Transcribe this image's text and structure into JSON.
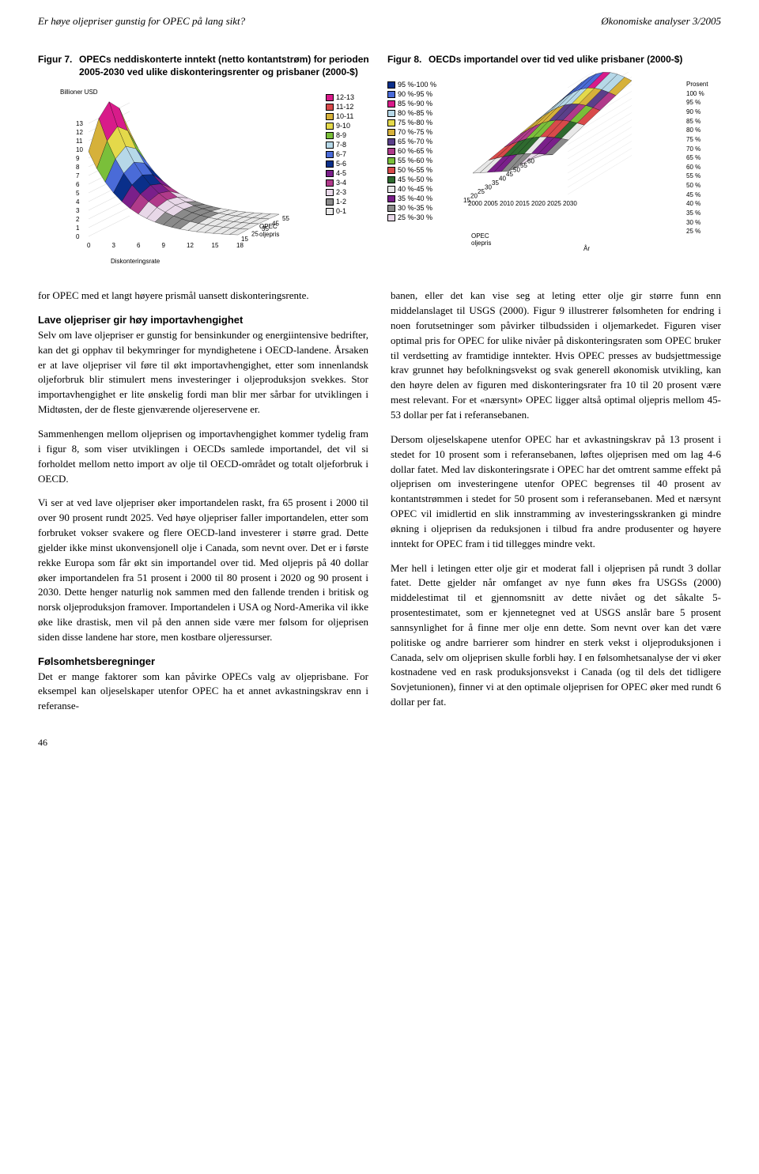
{
  "header": {
    "left": "Er høye oljepriser gunstig for OPEC på lang sikt?",
    "right": "Økonomiske analyser 3/2005"
  },
  "figure7": {
    "label": "Figur 7.",
    "title": "OPECs neddiskonterte inntekt (netto kontantstrøm) for perioden 2005-2030 ved ulike diskonteringsrenter og prisbaner (2000-$)",
    "z_unit": "Billioner USD",
    "z_ticks": [
      0,
      1,
      2,
      3,
      4,
      5,
      6,
      7,
      8,
      9,
      10,
      11,
      12,
      13
    ],
    "x_label": "Diskonteringsrate",
    "x_ticks": [
      0,
      3,
      6,
      9,
      12,
      15,
      18
    ],
    "y_label": "OPEC oljepris",
    "y_ticks": [
      15,
      25,
      35,
      45,
      55
    ],
    "legend": [
      {
        "label": "12-13",
        "color": "#d81b8a"
      },
      {
        "label": "11-12",
        "color": "#d84a4a"
      },
      {
        "label": "10-11",
        "color": "#d6b13a"
      },
      {
        "label": "9-10",
        "color": "#e4d94a"
      },
      {
        "label": "8-9",
        "color": "#7abf3a"
      },
      {
        "label": "7-8",
        "color": "#b6d8e8"
      },
      {
        "label": "6-7",
        "color": "#4a6bd8"
      },
      {
        "label": "5-6",
        "color": "#0a2f8a"
      },
      {
        "label": "4-5",
        "color": "#7a1f8a"
      },
      {
        "label": "3-4",
        "color": "#b03a8a"
      },
      {
        "label": "2-3",
        "color": "#e8d8e8"
      },
      {
        "label": "1-2",
        "color": "#8a8a8a"
      },
      {
        "label": "0-1",
        "color": "#e8e8e8"
      }
    ],
    "surface_grid_color": "#000000",
    "background": "#ffffff"
  },
  "figure8": {
    "label": "Figur 8.",
    "title": "OECDs importandel over tid ved ulike prisbaner (2000-$)",
    "legend": [
      {
        "label": "95 %-100 %",
        "color": "#0a2f8a"
      },
      {
        "label": "90 %-95 %",
        "color": "#4a6bd8"
      },
      {
        "label": "85 %-90 %",
        "color": "#d81b8a"
      },
      {
        "label": "80 %-85 %",
        "color": "#b6d8e8"
      },
      {
        "label": "75 %-80 %",
        "color": "#e4d94a"
      },
      {
        "label": "70 %-75 %",
        "color": "#d6b13a"
      },
      {
        "label": "65 %-70 %",
        "color": "#5a3f8a"
      },
      {
        "label": "60 %-65 %",
        "color": "#b03a8a"
      },
      {
        "label": "55 %-60 %",
        "color": "#7abf3a"
      },
      {
        "label": "50 %-55 %",
        "color": "#d84a4a"
      },
      {
        "label": "45 %-50 %",
        "color": "#2f6a2f"
      },
      {
        "label": "40 %-45 %",
        "color": "#e8e8e8"
      },
      {
        "label": "35 %-40 %",
        "color": "#7a1f8a"
      },
      {
        "label": "30 %-35 %",
        "color": "#8a8a8a"
      },
      {
        "label": "25 %-30 %",
        "color": "#e8d8e8"
      }
    ],
    "y_label": "OPEC oljepris",
    "y_ticks": [
      15,
      20,
      25,
      30,
      35,
      40,
      45,
      50,
      55,
      60
    ],
    "x_label": "År",
    "x_ticks": [
      2000,
      2005,
      2010,
      2015,
      2020,
      2025,
      2030
    ],
    "z_header": "Prosent",
    "z_ticks": [
      "100 %",
      "95 %",
      "90 %",
      "85 %",
      "80 %",
      "75 %",
      "70 %",
      "65 %",
      "60 %",
      "55 %",
      "50 %",
      "45 %",
      "40 %",
      "35 %",
      "30 %",
      "25 %"
    ],
    "surface_grid_color": "#000000",
    "background": "#ffffff"
  },
  "body": {
    "p1": "for OPEC med et langt høyere prismål uansett diskonteringsrente.",
    "h1": "Lave oljepriser gir høy importavhengighet",
    "p2": "Selv om lave oljepriser er gunstig for bensinkunder og energiintensive bedrifter, kan det gi opphav til bekymringer for myndighetene i OECD-landene. Årsaken er at lave oljepriser vil føre til økt importavhengighet, etter som innenlandsk oljeforbruk blir stimulert mens investeringer i oljeproduksjon svekkes. Stor importavhengighet er lite ønskelig fordi man blir mer sårbar for utviklingen i Midtøsten, der de fleste gjenværende oljereservene er.",
    "p3": "Sammenhengen mellom oljeprisen og importavhengighet kommer tydelig fram i figur 8, som viser utviklingen i OECDs samlede importandel, det vil si forholdet mellom netto import av olje til OECD-området og totalt oljeforbruk i OECD.",
    "p4": "Vi ser at ved lave oljepriser øker importandelen raskt, fra 65 prosent i 2000 til over 90 prosent rundt 2025. Ved høye oljepriser faller importandelen, etter som forbruket vokser svakere og flere OECD-land investerer i større grad. Dette gjelder ikke minst ukonvensjonell olje i Canada, som nevnt over. Det er i første rekke Europa som får økt sin importandel over tid. Med oljepris på 40 dollar øker importandelen fra 51 prosent i 2000 til 80 prosent i 2020 og 90 prosent i 2030. Dette henger naturlig nok sammen med den fallende trenden i britisk og norsk oljeproduksjon framover. Importandelen i USA og Nord-Amerika vil ikke øke like drastisk, men vil på den annen side være mer følsom for oljeprisen siden disse landene har store, men kostbare oljeressurser.",
    "h2": "Følsomhetsberegninger",
    "p5": "Det er mange faktorer som kan påvirke OPECs valg av oljeprisbane. For eksempel kan oljeselskaper utenfor OPEC ha et annet avkastningskrav enn i referanse-",
    "p6": "banen, eller det kan vise seg at leting etter olje gir større funn enn middelanslaget til USGS (2000). Figur 9 illustrerer følsomheten for endring i noen forutsetninger som påvirker tilbudssiden i oljemarkedet. Figuren viser optimal pris for OPEC for ulike nivåer på diskonteringsraten som OPEC bruker til verdsetting av framtidige inntekter. Hvis OPEC presses av budsjettmessige krav grunnet høy befolkningsvekst og svak generell økonomisk utvikling, kan den høyre delen av figuren med diskonteringsrater fra 10 til 20 prosent være mest relevant. For et «nærsynt» OPEC ligger altså optimal oljepris mellom 45-53 dollar per fat i referansebanen.",
    "p7": "Dersom oljeselskapene utenfor OPEC har et avkastningskrav på 13 prosent i stedet for 10 prosent som i referansebanen, løftes oljeprisen med om lag 4-6 dollar fatet. Med lav diskonteringsrate i OPEC har det omtrent samme effekt på oljeprisen om investeringene utenfor OPEC begrenses til 40 prosent av kontantstrømmen i stedet for 50 prosent som i referansebanen. Med et nærsynt OPEC vil imidlertid en slik innstramming av investeringsskranken gi mindre økning i oljeprisen da reduksjonen i tilbud fra andre produsenter og høyere inntekt for OPEC fram i tid tillegges mindre vekt.",
    "p8": "Mer hell i letingen etter olje gir et moderat fall i oljeprisen på rundt 3 dollar fatet. Dette gjelder når omfanget av nye funn økes fra USGSs (2000) middelestimat til et gjennomsnitt av dette nivået og det såkalte 5-prosentestimatet, som er kjennetegnet ved at USGS anslår bare 5 prosent sannsynlighet for å finne mer olje enn dette. Som nevnt over kan det være politiske og andre barrierer som hindrer en sterk vekst i oljeproduksjonen i Canada, selv om oljeprisen skulle forbli høy. I en følsomhetsanalyse der vi øker kostnadene ved en rask produksjonsvekst i Canada (og til dels det tidligere Sovjetunionen), finner vi at den optimale oljeprisen for OPEC øker med rundt 6 dollar per fat."
  },
  "pagenum": "46"
}
